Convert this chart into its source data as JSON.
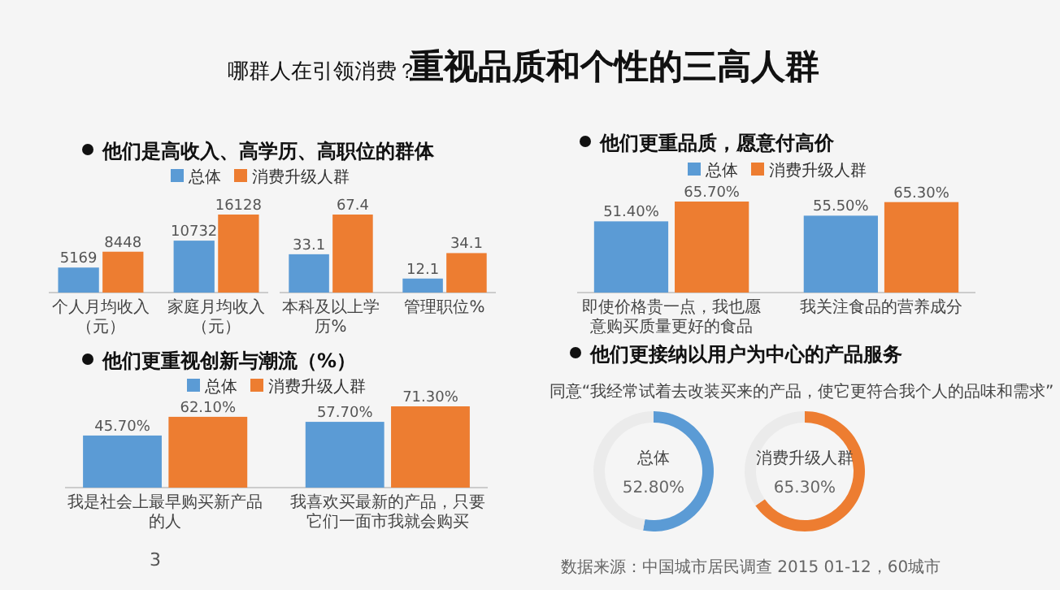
{
  "chart_data": [
    {
      "type": "bar",
      "title": "他们是高收入、高学历、高职位的群体",
      "categories": [
        "个人月均收入（元）",
        "家庭月均收入（元）"
      ],
      "series": [
        {
          "name": "总体",
          "color": "#5b9bd5",
          "values": [
            5169,
            10732
          ]
        },
        {
          "name": "消费升级人群",
          "color": "#ed7d31",
          "values": [
            8448,
            16128
          ]
        }
      ],
      "data_labels": true,
      "legend": "top",
      "annotations": [
        "哪群人在引领消费？",
        "重视品质和个性的三高人群",
        "数据来源：中国城市居民调查 2015 01-12，60城市",
        "3"
      ]
    },
    {
      "type": "bar",
      "categories": [
        "本科及以上学历%",
        "管理职位%"
      ],
      "series": [
        {
          "color": "#5b9bd5",
          "values": [
            33.1,
            12.1
          ]
        },
        {
          "color": "#ed7d31",
          "values": [
            67.4,
            34.1
          ]
        }
      ],
      "data_labels": true
    },
    {
      "type": "bar",
      "title": "他们更重品质，愿意付高价",
      "categories": [
        "即使价格贵一点，我也愿意购买质量更好的食品",
        "我关注食品的营养成分"
      ],
      "series": [
        {
          "name": "总体",
          "color": "#5b9bd5",
          "values": [
            51.4,
            55.5
          ],
          "value_labels": [
            "51.40%",
            "55.50%"
          ]
        },
        {
          "name": "消费升级人群",
          "color": "#ed7d31",
          "values": [
            65.7,
            65.3
          ],
          "value_labels": [
            "65.70%",
            "65.30%"
          ]
        }
      ],
      "legend": "top"
    },
    {
      "type": "bar",
      "title": "他们更重视创新与潮流（%）",
      "categories": [
        "我是社会上最早购买新产品的人",
        "我喜欢买最新的产品，只要它们一面市我就会购买"
      ],
      "series": [
        {
          "name": "总体",
          "color": "#5b9bd5",
          "values": [
            45.7,
            57.7
          ],
          "value_labels": [
            "45.70%",
            "57.70%"
          ]
        },
        {
          "name": "消费升级人群",
          "color": "#ed7d31",
          "values": [
            62.1,
            71.3
          ],
          "value_labels": [
            "62.10%",
            "71.30%"
          ]
        }
      ],
      "legend": "top"
    },
    {
      "type": "donut",
      "title": "他们更接纳以用户为中心的产品服务",
      "subtitle": "同意“我经常试着去改装买来的产品，使它更符合我个人的品味和需求”",
      "categories": [
        "总体",
        null
      ],
      "values": [
        52.8,
        47.2
      ],
      "colors": [
        "#5b9bd5",
        "#ebebeb"
      ],
      "value_labels": [
        "52.80%",
        null
      ]
    },
    {
      "type": "donut",
      "categories": [
        "消费升级人群",
        null
      ],
      "values": [
        65.3,
        34.7
      ],
      "colors": [
        "#ed7d31",
        "#ebebeb"
      ],
      "value_labels": [
        "65.30%",
        null
      ]
    }
  ]
}
